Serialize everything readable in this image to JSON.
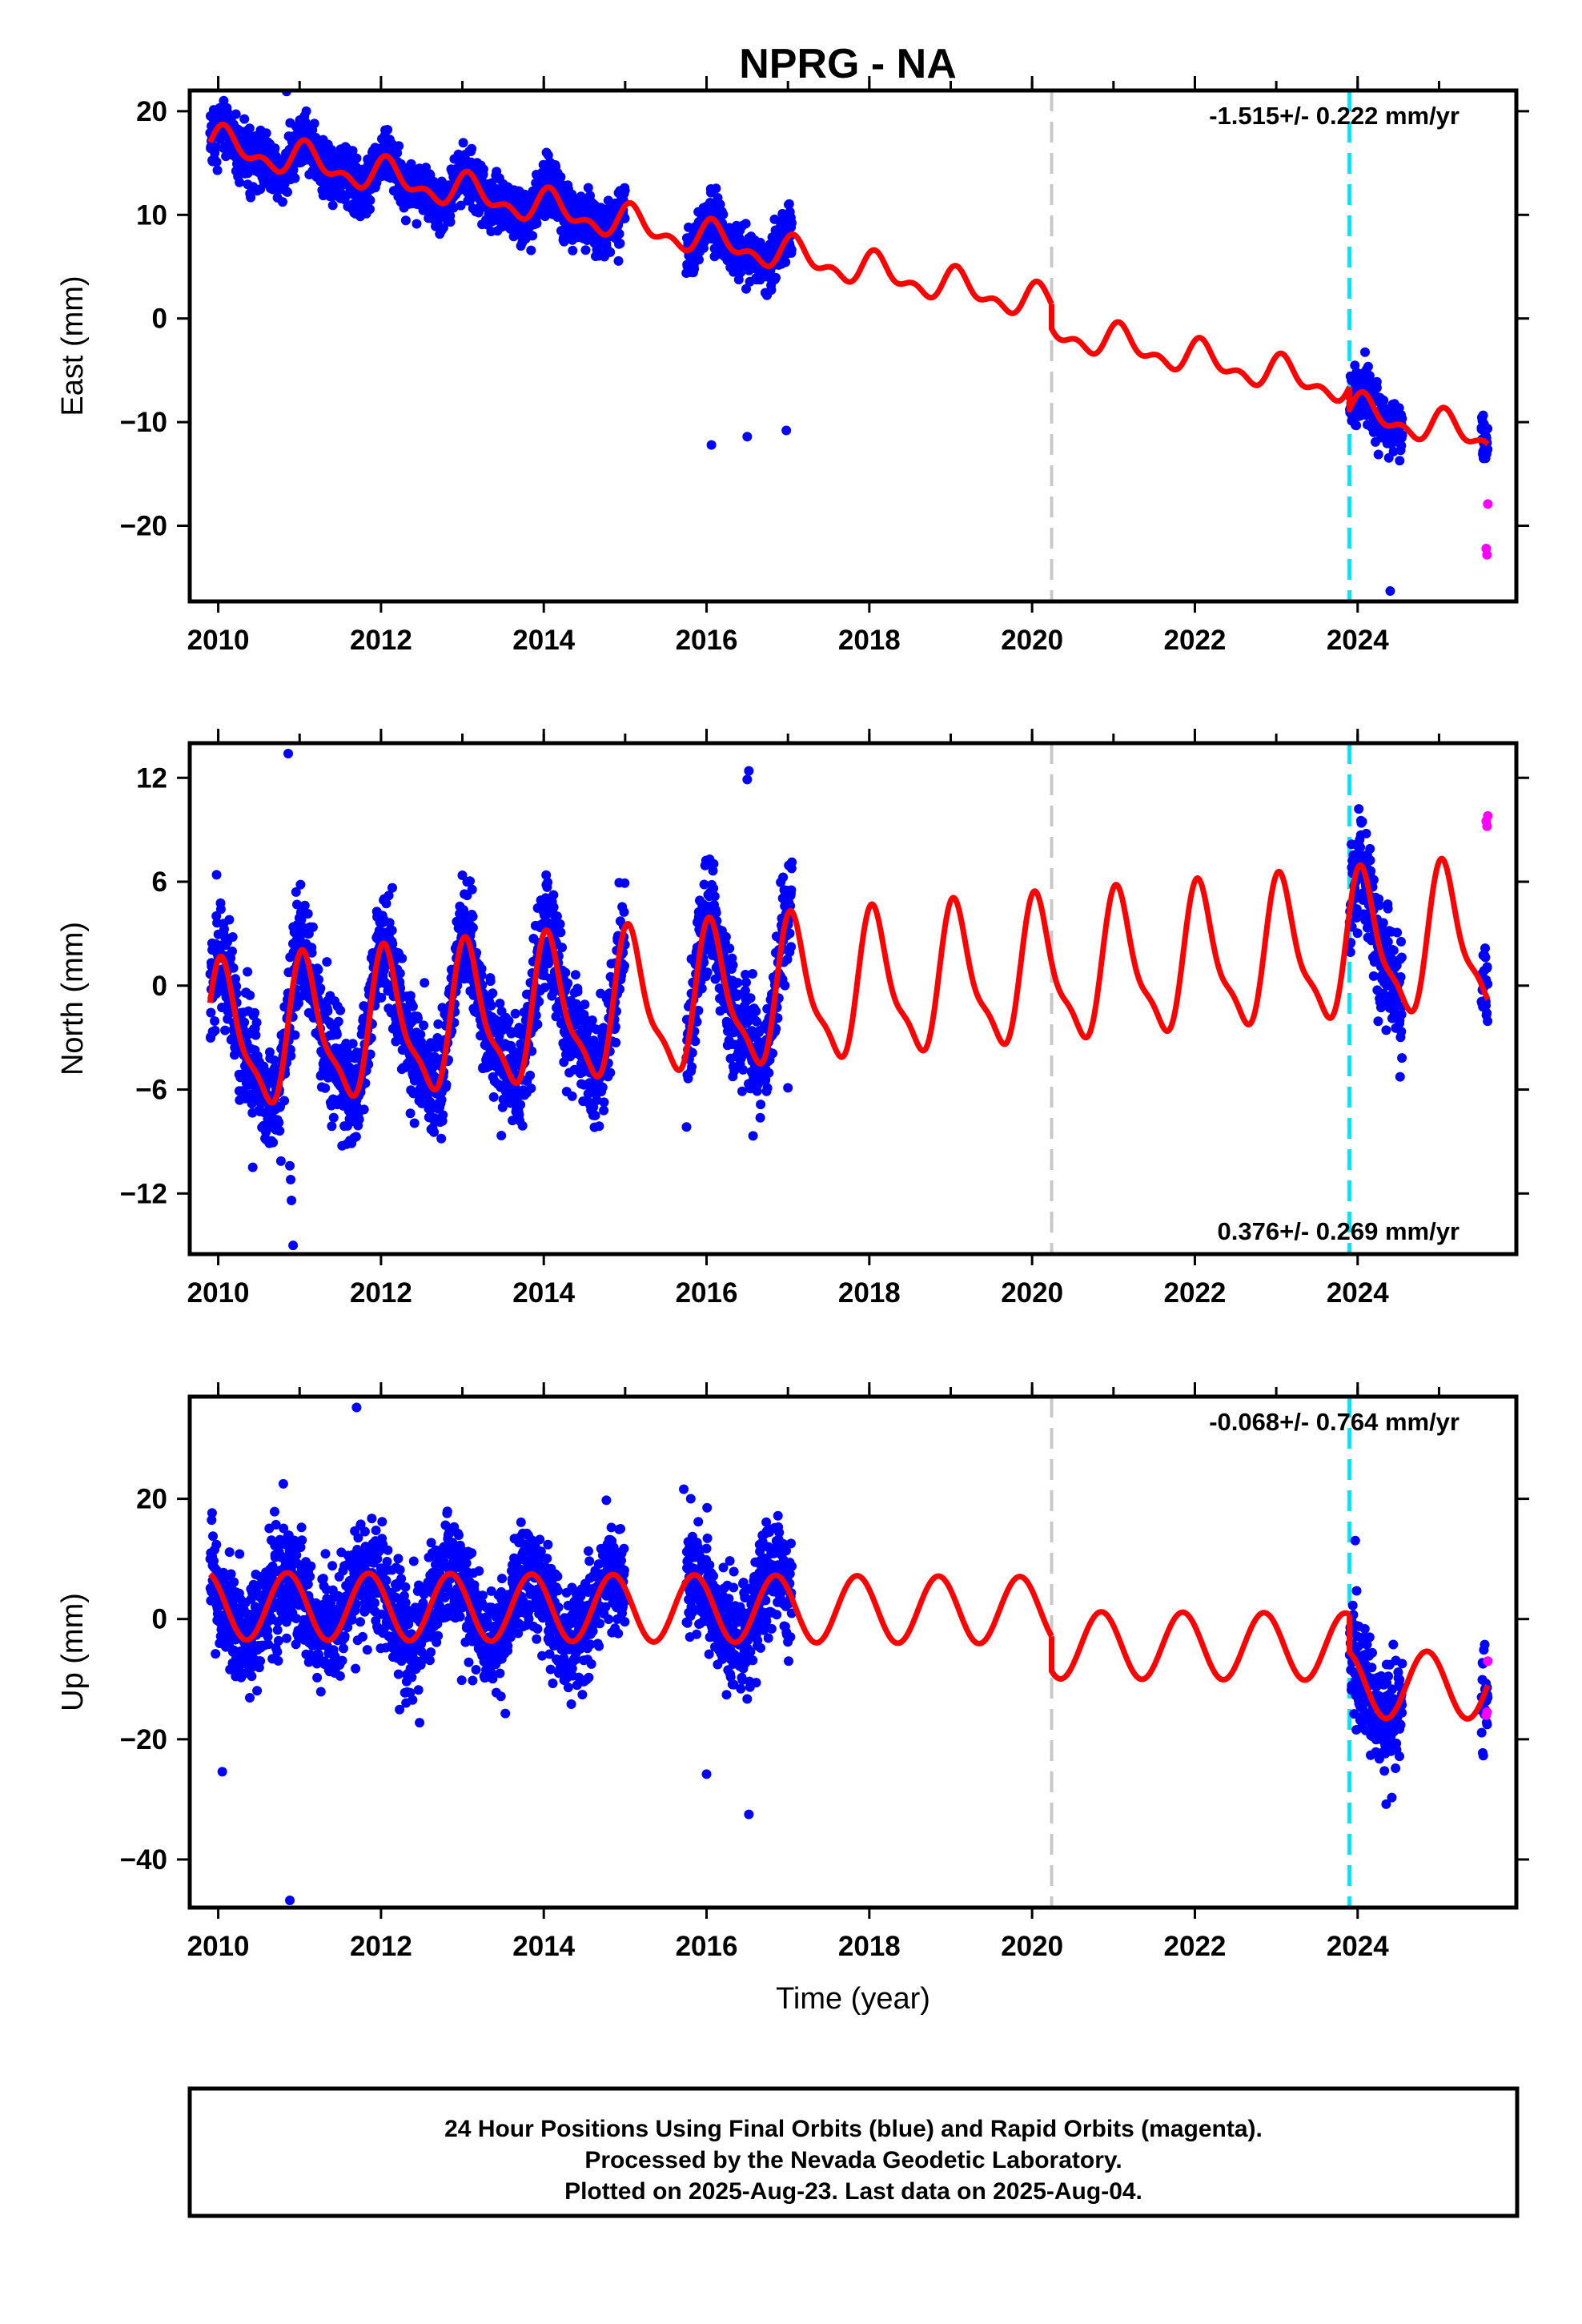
{
  "title": "NPRG - NA",
  "colors": {
    "final": "#0000ff",
    "rapid": "#ff00ff",
    "model": "#ff0000",
    "antenna_change": "#c8c8c8",
    "equipment_change": "#00e5ff"
  },
  "footer": {
    "line1": "24 Hour Positions Using Final Orbits (blue) and Rapid Orbits (magenta).",
    "line2": "Processed by the Nevada Geodetic Laboratory.",
    "line3": "Plotted on 2025-Aug-23. Last data on 2025-Aug-04."
  },
  "chart_data": [
    {
      "type": "scatter",
      "id": "east",
      "ylabel": "East (mm)",
      "xlabel": "",
      "rate_label": "-1.515+/- 0.222 mm/yr",
      "rate_position": "top-right",
      "xlim": [
        2009.65,
        2025.95
      ],
      "ylim": [
        -27.3,
        22.0
      ],
      "xticks": [
        2010,
        2012,
        2014,
        2016,
        2018,
        2020,
        2022,
        2024
      ],
      "yticks": [
        -20,
        -10,
        0,
        10,
        20
      ],
      "vlines": [
        {
          "x": 2020.24,
          "style": "dashed",
          "color": "antenna_change"
        },
        {
          "x": 2023.9,
          "style": "dashed",
          "color": "equipment_change"
        }
      ],
      "model": {
        "name": "model fit",
        "rate": -1.515,
        "segments": [
          {
            "t0": 2009.9,
            "t1": 2020.24,
            "offset": 4.6,
            "annual_amp": 1.3,
            "annual_phase": 0.1,
            "semi_amp": 0.85,
            "semi_phase": 0.05
          },
          {
            "t0": 2020.24,
            "t1": 2023.9,
            "offset": 2.2,
            "annual_amp": 1.3,
            "annual_phase": 0.1,
            "semi_amp": 0.85,
            "semi_phase": 0.05
          },
          {
            "t0": 2023.9,
            "t1": 2025.6,
            "offset": 0.0,
            "annual_amp": 1.3,
            "annual_phase": 0.1,
            "semi_amp": 0.85,
            "semi_phase": 0.05
          }
        ]
      },
      "data_spans": [
        [
          2009.9,
          2015.0
        ],
        [
          2015.75,
          2017.05
        ],
        [
          2023.9,
          2024.55
        ],
        [
          2025.52,
          2025.6
        ]
      ],
      "scatter": {
        "noise_sd": 1.3,
        "density_per_year": 330
      },
      "outliers": [
        [
          2010.84,
          21.9
        ],
        [
          2010.85,
          12.2
        ],
        [
          2009.98,
          15.1
        ],
        [
          2009.99,
          14.3
        ],
        [
          2016.06,
          -12.2
        ],
        [
          2016.5,
          -11.4
        ],
        [
          2016.98,
          -10.8
        ],
        [
          2024.4,
          -26.3
        ]
      ],
      "rapid_points": [
        [
          2025.6,
          -17.9
        ],
        [
          2025.59,
          -22.8
        ],
        [
          2025.58,
          -22.2
        ]
      ]
    },
    {
      "type": "scatter",
      "id": "north",
      "ylabel": "North (mm)",
      "xlabel": "",
      "rate_label": "0.376+/- 0.269 mm/yr",
      "rate_position": "bottom-right",
      "xlim": [
        2009.65,
        2025.95
      ],
      "ylim": [
        -15.5,
        14.0
      ],
      "xticks": [
        2010,
        2012,
        2014,
        2016,
        2018,
        2020,
        2022,
        2024
      ],
      "yticks": [
        -12,
        -6,
        0,
        6,
        12
      ],
      "vlines": [
        {
          "x": 2020.24,
          "style": "dashed",
          "color": "antenna_change"
        },
        {
          "x": 2023.9,
          "style": "dashed",
          "color": "equipment_change"
        }
      ],
      "model": {
        "name": "model fit",
        "rate": 0.376,
        "segments": [
          {
            "t0": 2009.9,
            "t1": 2020.24,
            "offset": -0.2,
            "annual_amp": 3.9,
            "annual_phase": 0.07,
            "semi_amp": 1.2,
            "semi_phase": 0.0
          },
          {
            "t0": 2020.24,
            "t1": 2023.9,
            "offset": -0.2,
            "annual_amp": 3.9,
            "annual_phase": 0.07,
            "semi_amp": 1.2,
            "semi_phase": 0.0
          },
          {
            "t0": 2023.9,
            "t1": 2025.6,
            "offset": -0.2,
            "annual_amp": 3.9,
            "annual_phase": 0.07,
            "semi_amp": 1.2,
            "semi_phase": 0.0
          }
        ]
      },
      "data_spans": [
        [
          2009.9,
          2015.0
        ],
        [
          2015.75,
          2017.05
        ],
        [
          2023.9,
          2024.55
        ],
        [
          2025.52,
          2025.6
        ]
      ],
      "scatter": {
        "noise_sd": 1.6,
        "density_per_year": 330
      },
      "outliers": [
        [
          2010.86,
          13.4
        ],
        [
          2010.88,
          -10.4
        ],
        [
          2010.89,
          -11.2
        ],
        [
          2010.9,
          -12.4
        ],
        [
          2010.92,
          -15.0
        ],
        [
          2016.52,
          12.4
        ],
        [
          2016.5,
          11.9
        ],
        [
          2017.0,
          -5.9
        ],
        [
          2009.98,
          6.4
        ]
      ],
      "rapid_points": [
        [
          2025.6,
          9.8
        ],
        [
          2025.59,
          9.2
        ],
        [
          2025.58,
          9.5
        ]
      ]
    },
    {
      "type": "scatter",
      "id": "up",
      "ylabel": "Up (mm)",
      "xlabel": "Time (year)",
      "rate_label": "-0.068+/- 0.764 mm/yr",
      "rate_position": "top-right",
      "xlim": [
        2009.65,
        2025.95
      ],
      "ylim": [
        -48.0,
        37.0
      ],
      "xticks": [
        2010,
        2012,
        2014,
        2016,
        2018,
        2020,
        2022,
        2024
      ],
      "yticks": [
        -40,
        -20,
        0,
        20
      ],
      "vlines": [
        {
          "x": 2020.24,
          "style": "dashed",
          "color": "antenna_change"
        },
        {
          "x": 2023.9,
          "style": "dashed",
          "color": "equipment_change"
        }
      ],
      "model": {
        "name": "model fit",
        "rate": -0.068,
        "segments": [
          {
            "t0": 2009.9,
            "t1": 2020.24,
            "offset": 1.6,
            "annual_amp": 5.6,
            "annual_phase": 0.85,
            "semi_amp": 0.0,
            "semi_phase": 0.0
          },
          {
            "t0": 2020.24,
            "t1": 2023.9,
            "offset": -4.2,
            "annual_amp": 5.6,
            "annual_phase": 0.85,
            "semi_amp": 0.0,
            "semi_phase": 0.0
          },
          {
            "t0": 2023.9,
            "t1": 2025.6,
            "offset": -10.5,
            "annual_amp": 5.6,
            "annual_phase": 0.85,
            "semi_amp": 0.0,
            "semi_phase": 0.0
          }
        ]
      },
      "data_spans": [
        [
          2009.9,
          2015.0
        ],
        [
          2015.75,
          2017.05
        ],
        [
          2023.9,
          2024.55
        ],
        [
          2025.52,
          2025.6
        ]
      ],
      "scatter": {
        "noise_sd": 4.5,
        "density_per_year": 330
      },
      "outliers": [
        [
          2011.7,
          35.2
        ],
        [
          2010.88,
          -46.8
        ],
        [
          2010.05,
          -25.4
        ],
        [
          2016.52,
          -32.5
        ],
        [
          2016.0,
          -25.8
        ],
        [
          2010.8,
          22.5
        ],
        [
          2015.72,
          21.6
        ],
        [
          2024.35,
          -30.8
        ],
        [
          2024.42,
          -29.7
        ]
      ],
      "rapid_points": [
        [
          2025.6,
          -7.0
        ],
        [
          2025.59,
          -15.5
        ],
        [
          2025.58,
          -16.0
        ]
      ]
    }
  ]
}
